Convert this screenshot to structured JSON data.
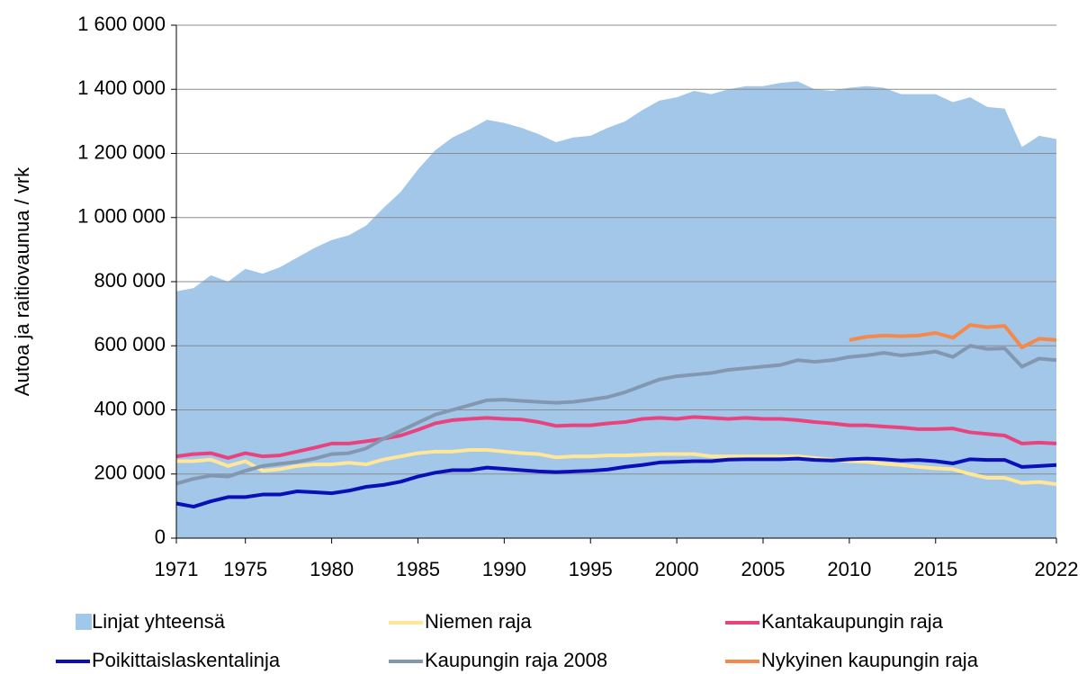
{
  "chart_data": {
    "type": "line",
    "y_label": "Autoa ja raitiovaunua / vrk",
    "x": [
      1971,
      1972,
      1973,
      1974,
      1975,
      1976,
      1977,
      1978,
      1979,
      1980,
      1981,
      1982,
      1983,
      1984,
      1985,
      1986,
      1987,
      1988,
      1989,
      1990,
      1991,
      1992,
      1993,
      1994,
      1995,
      1996,
      1997,
      1998,
      1999,
      2000,
      2001,
      2002,
      2003,
      2004,
      2005,
      2006,
      2007,
      2008,
      2009,
      2010,
      2011,
      2012,
      2013,
      2014,
      2015,
      2016,
      2017,
      2018,
      2019,
      2020,
      2021,
      2022
    ],
    "xlim": [
      1971,
      2022
    ],
    "xticks": [
      1971,
      1975,
      1980,
      1985,
      1990,
      1995,
      2000,
      2005,
      2010,
      2015,
      2022
    ],
    "ylim": [
      0,
      1600000
    ],
    "yticks": [
      0,
      {
        "value": 200000,
        "label": "200 000"
      },
      {
        "value": 400000,
        "label": "400 000"
      },
      {
        "value": 600000,
        "label": "600 000"
      },
      {
        "value": 800000,
        "label": "800 000"
      },
      {
        "value": 1000000,
        "label": "1 000 000"
      },
      {
        "value": 1200000,
        "label": "1 200 000"
      },
      {
        "value": 1400000,
        "label": "1 400 000"
      },
      {
        "value": 1600000,
        "label": "1 600 000"
      }
    ],
    "grid": true,
    "legend": "bottom",
    "series": [
      {
        "name": "Linjat yhteensä",
        "style": "area",
        "color": "#a3c7e9",
        "values": [
          770000,
          780000,
          820000,
          800000,
          840000,
          825000,
          845000,
          875000,
          905000,
          930000,
          945000,
          975000,
          1030000,
          1080000,
          1150000,
          1210000,
          1250000,
          1275000,
          1305000,
          1295000,
          1280000,
          1260000,
          1235000,
          1250000,
          1255000,
          1280000,
          1300000,
          1335000,
          1365000,
          1375000,
          1395000,
          1385000,
          1400000,
          1410000,
          1410000,
          1420000,
          1425000,
          1400000,
          1395000,
          1405000,
          1410000,
          1405000,
          1385000,
          1385000,
          1385000,
          1360000,
          1375000,
          1345000,
          1340000,
          1220000,
          1255000,
          1245000
        ]
      },
      {
        "name": "Niemen raja",
        "style": "line",
        "color": "#ffe699",
        "values": [
          240000,
          240000,
          245000,
          225000,
          240000,
          210000,
          215000,
          225000,
          230000,
          230000,
          235000,
          230000,
          245000,
          255000,
          265000,
          270000,
          270000,
          275000,
          275000,
          270000,
          265000,
          262000,
          252000,
          255000,
          255000,
          258000,
          258000,
          260000,
          262000,
          262000,
          262000,
          255000,
          255000,
          255000,
          255000,
          255000,
          255000,
          250000,
          245000,
          240000,
          238000,
          232000,
          228000,
          222000,
          218000,
          215000,
          200000,
          188000,
          188000,
          172000,
          175000,
          168000
        ]
      },
      {
        "name": "Kantakaupungin raja",
        "style": "line",
        "color": "#e8437f",
        "values": [
          255000,
          262000,
          265000,
          250000,
          265000,
          255000,
          258000,
          270000,
          282000,
          295000,
          295000,
          302000,
          310000,
          320000,
          338000,
          358000,
          368000,
          372000,
          375000,
          372000,
          370000,
          362000,
          350000,
          352000,
          352000,
          358000,
          362000,
          372000,
          375000,
          372000,
          378000,
          375000,
          372000,
          375000,
          372000,
          372000,
          368000,
          362000,
          358000,
          352000,
          352000,
          348000,
          345000,
          340000,
          340000,
          342000,
          330000,
          325000,
          320000,
          295000,
          298000,
          295000
        ]
      },
      {
        "name": "Poikittaislaskentalinja",
        "style": "line",
        "color": "#0a10b8",
        "values": [
          108000,
          98000,
          115000,
          128000,
          128000,
          136000,
          136000,
          146000,
          143000,
          140000,
          148000,
          160000,
          166000,
          176000,
          192000,
          204000,
          212000,
          212000,
          220000,
          216000,
          212000,
          208000,
          206000,
          208000,
          210000,
          214000,
          222000,
          228000,
          236000,
          238000,
          240000,
          240000,
          245000,
          246000,
          246000,
          246000,
          248000,
          244000,
          242000,
          246000,
          248000,
          246000,
          242000,
          244000,
          240000,
          233000,
          246000,
          244000,
          244000,
          222000,
          225000,
          228000
        ]
      },
      {
        "name": "Kaupungin raja 2008",
        "style": "line",
        "color": "#8497b0",
        "values": [
          170000,
          185000,
          195000,
          192000,
          210000,
          225000,
          232000,
          238000,
          248000,
          262000,
          265000,
          280000,
          310000,
          335000,
          360000,
          385000,
          400000,
          415000,
          430000,
          432000,
          428000,
          425000,
          422000,
          425000,
          432000,
          440000,
          455000,
          475000,
          495000,
          505000,
          510000,
          515000,
          525000,
          530000,
          535000,
          540000,
          555000,
          550000,
          555000,
          565000,
          570000,
          578000,
          570000,
          575000,
          582000,
          565000,
          600000,
          590000,
          592000,
          535000,
          560000,
          555000
        ]
      },
      {
        "name": "Nykyinen kaupungin raja",
        "style": "line",
        "color": "#f4894b",
        "values": [
          null,
          null,
          null,
          null,
          null,
          null,
          null,
          null,
          null,
          null,
          null,
          null,
          null,
          null,
          null,
          null,
          null,
          null,
          null,
          null,
          null,
          null,
          null,
          null,
          null,
          null,
          null,
          null,
          null,
          null,
          null,
          null,
          null,
          null,
          null,
          null,
          null,
          null,
          null,
          618000,
          628000,
          632000,
          630000,
          632000,
          640000,
          625000,
          665000,
          658000,
          662000,
          595000,
          622000,
          618000
        ]
      }
    ]
  }
}
